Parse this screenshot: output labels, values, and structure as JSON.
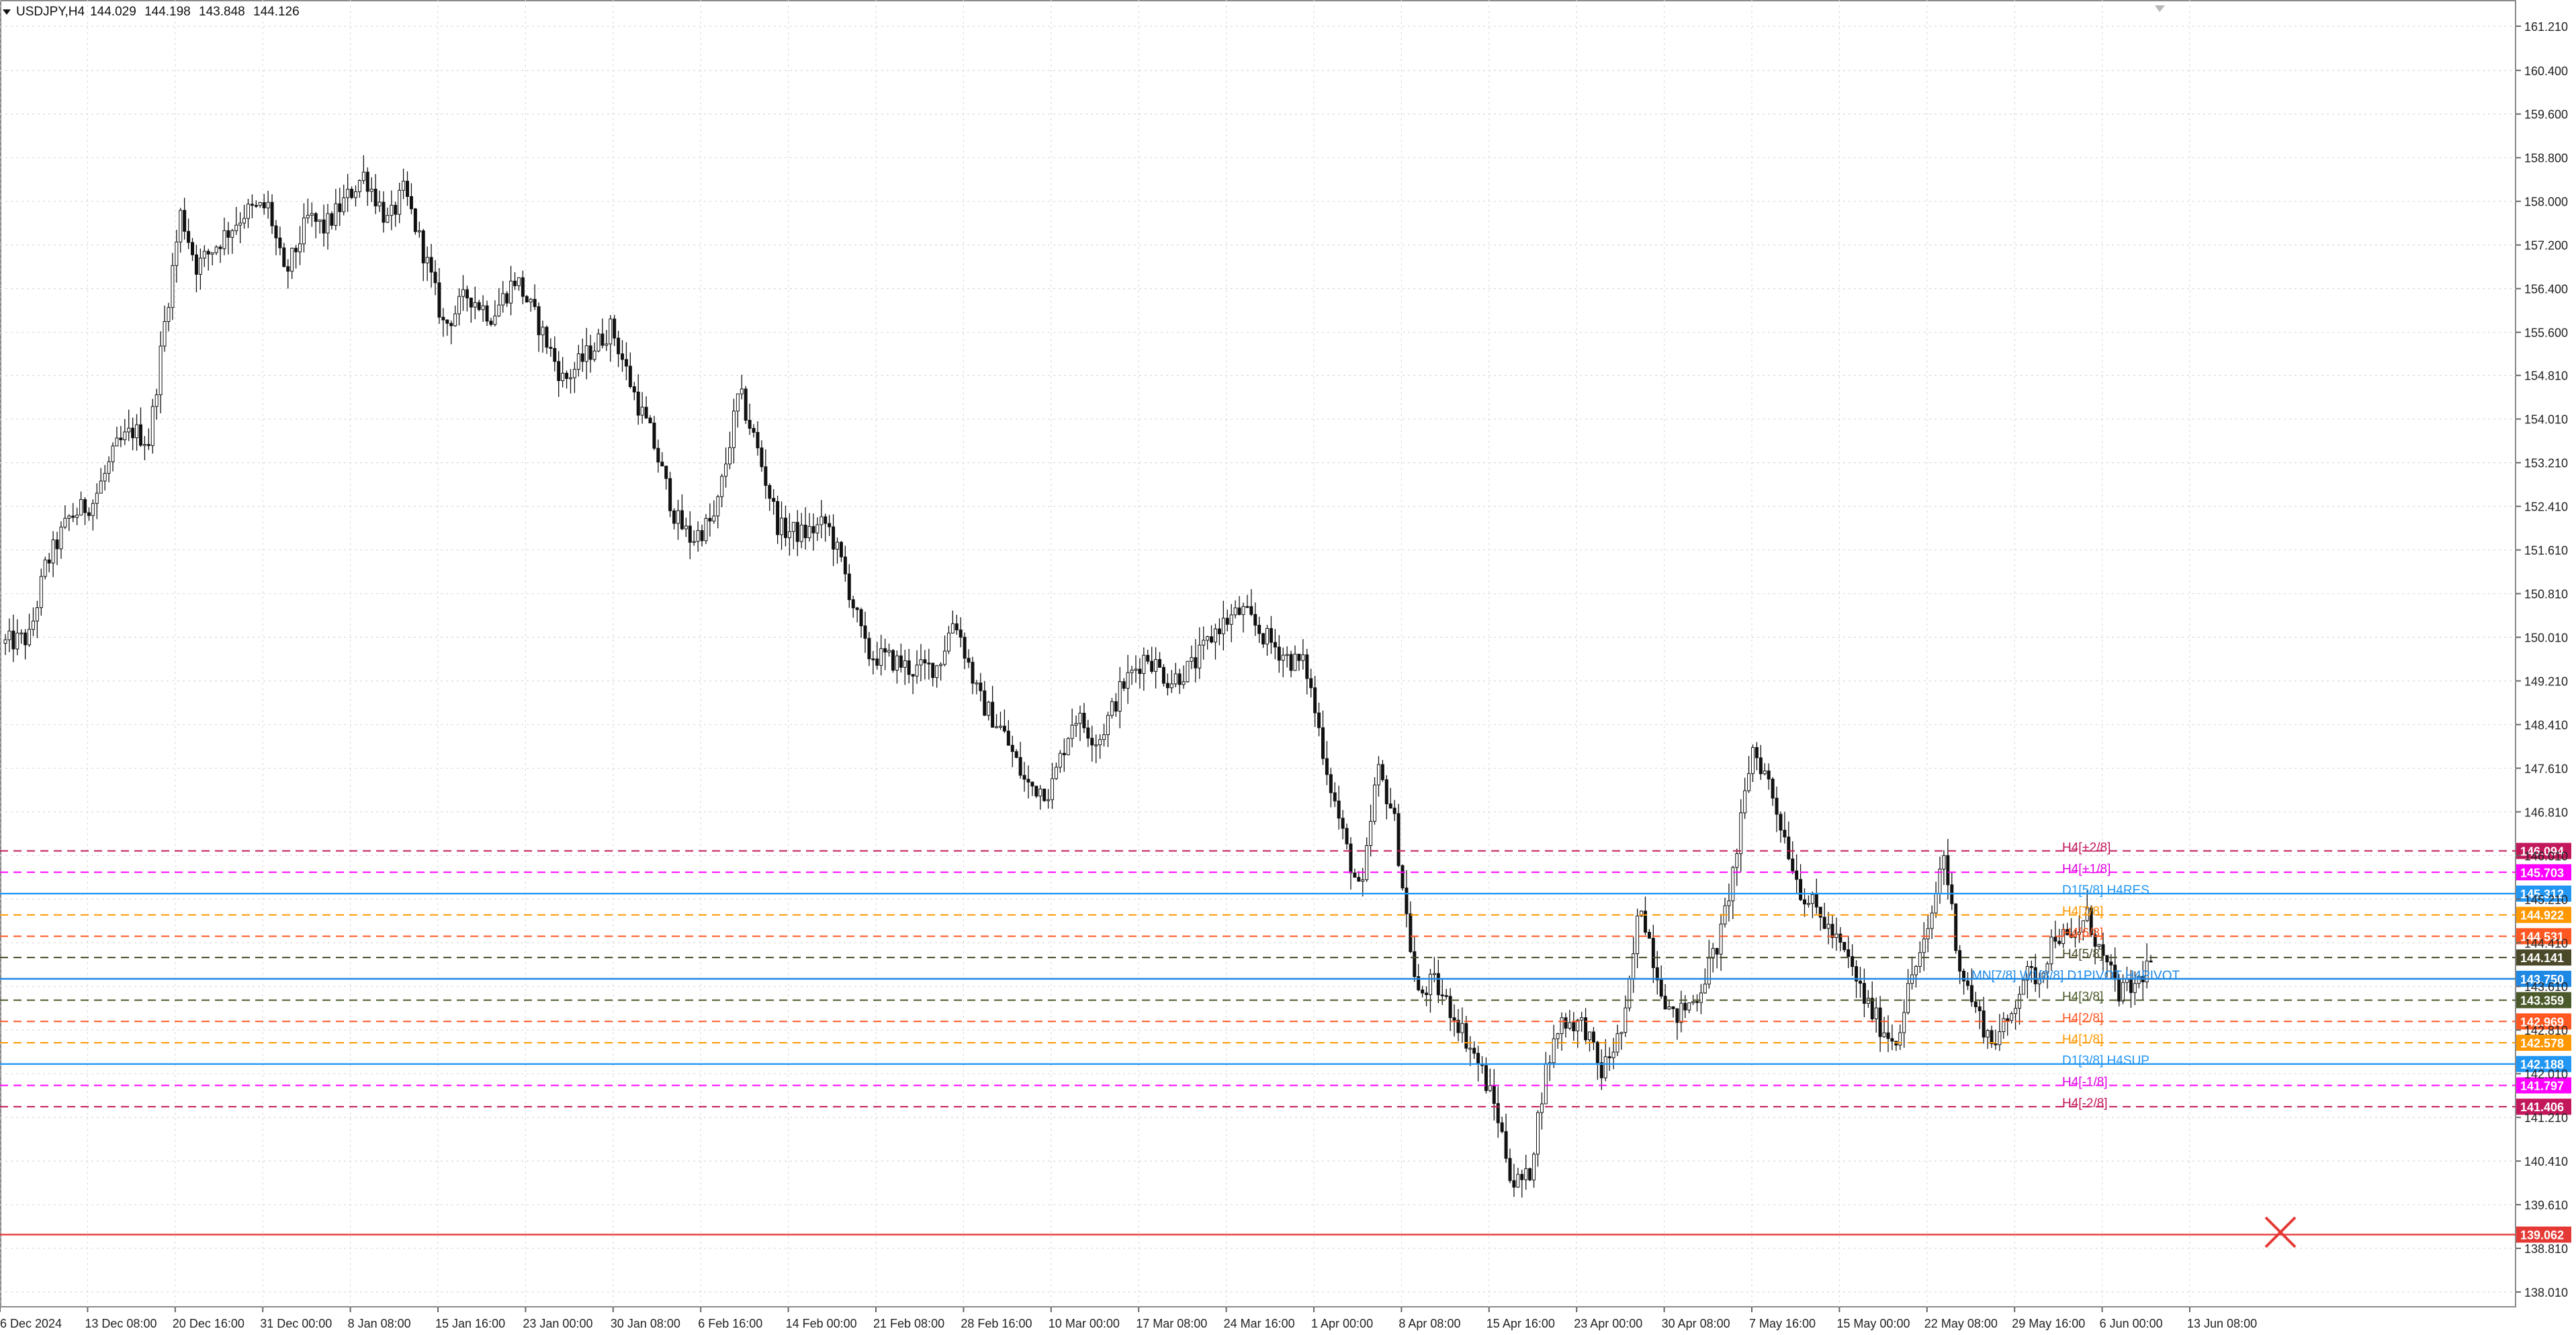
{
  "symbol": {
    "name": "USDJPY,H4",
    "open": "144.029",
    "high": "144.198",
    "low": "143.848",
    "close": "144.126",
    "menu_icon": "triangle-down-icon"
  },
  "price_axis": {
    "ticks": [
      "161.210",
      "160.400",
      "159.600",
      "158.800",
      "158.000",
      "157.200",
      "156.400",
      "155.600",
      "154.810",
      "154.010",
      "153.210",
      "152.410",
      "151.610",
      "150.810",
      "150.010",
      "149.210",
      "148.410",
      "147.610",
      "146.810",
      "146.010",
      "145.210",
      "144.410",
      "143.610",
      "142.810",
      "142.010",
      "141.210",
      "140.410",
      "139.610",
      "138.810",
      "138.010"
    ],
    "range": [
      137.6,
      161.7
    ]
  },
  "time_axis": {
    "labels": [
      "6 Dec 2024",
      "13 Dec 08:00",
      "20 Dec 16:00",
      "31 Dec 00:00",
      "8 Jan 08:00",
      "15 Jan 16:00",
      "23 Jan 00:00",
      "30 Jan 08:00",
      "6 Feb 16:00",
      "14 Feb 00:00",
      "21 Feb 08:00",
      "28 Feb 16:00",
      "10 Mar 00:00",
      "17 Mar 08:00",
      "24 Mar 16:00",
      "1 Apr 00:00",
      "8 Apr 08:00",
      "15 Apr 16:00",
      "23 Apr 00:00",
      "30 Apr 08:00",
      "7 May 16:00",
      "15 May 00:00",
      "22 May 08:00",
      "29 May 16:00",
      "6 Jun 00:00",
      "13 Jun 08:00"
    ]
  },
  "levels": [
    {
      "price": 146.094,
      "badge": "146.094",
      "color": "#c2185b",
      "dash": true,
      "label": "H4[+2/8]",
      "label_color": "#c2185b"
    },
    {
      "price": 145.703,
      "badge": "145.703",
      "color": "#ff00ff",
      "dash": true,
      "label": "H4[+1/8]",
      "label_color": "#e000e0"
    },
    {
      "price": 145.312,
      "badge": "145.312",
      "color": "#2196f3",
      "dash": false,
      "label": "D1[5/8] H4RES",
      "label_color": "#2196f3"
    },
    {
      "price": 144.922,
      "badge": "144.922",
      "color": "#ff9800",
      "dash": true,
      "label": "H4[7/8]",
      "label_color": "#ff9800"
    },
    {
      "price": 144.531,
      "badge": "144.531",
      "color": "#ff5722",
      "dash": true,
      "label": "H4[6/8]",
      "label_color": "#ff5722"
    },
    {
      "price": 144.141,
      "badge": "144.141",
      "color": "#4a4a2a",
      "dash": true,
      "label": "H4[5/8]",
      "label_color": "#4a4a2a"
    },
    {
      "price": 143.75,
      "badge": "143.750",
      "color": "#1e88e5",
      "dash": false,
      "label": "MN[7/8] W1[8/8] D1PIVOT H4PIVOT",
      "label_color": "#1e88e5"
    },
    {
      "price": 143.359,
      "badge": "143.359",
      "color": "#4a5a2a",
      "dash": true,
      "label": "H4[3/8]",
      "label_color": "#4a5a2a"
    },
    {
      "price": 142.969,
      "badge": "142.969",
      "color": "#ff5722",
      "dash": true,
      "label": "H4[2/8]",
      "label_color": "#ff5722"
    },
    {
      "price": 142.578,
      "badge": "142.578",
      "color": "#ff9800",
      "dash": true,
      "label": "H4[1/8]",
      "label_color": "#ff9800"
    },
    {
      "price": 142.188,
      "badge": "142.188",
      "color": "#2196f3",
      "dash": false,
      "label": "D1[3/8] H4SUP",
      "label_color": "#2196f3"
    },
    {
      "price": 141.797,
      "badge": "141.797",
      "color": "#ff00ff",
      "dash": true,
      "label": "H4[-1/8]",
      "label_color": "#e000e0"
    },
    {
      "price": 141.406,
      "badge": "141.406",
      "color": "#c2185b",
      "dash": true,
      "label": "H4[-2/8]",
      "label_color": "#c2185b"
    },
    {
      "price": 139.062,
      "badge": "139.062",
      "color": "#e53935",
      "dash": false,
      "label": "",
      "label_color": "#e53935"
    }
  ],
  "marker": {
    "icon": "red-x-icon",
    "price": 139.2,
    "color": "#e53935"
  },
  "top_marker_icon": "scroll-marker-icon",
  "chart_data": {
    "type": "candlestick",
    "title": "",
    "xlabel": "",
    "ylabel": "",
    "ylim": [
      137.6,
      161.7
    ],
    "grid": true,
    "approx_path": [
      [
        0,
        149.9
      ],
      [
        6,
        150.0
      ],
      [
        10,
        151.3
      ],
      [
        16,
        152.2
      ],
      [
        22,
        152.5
      ],
      [
        28,
        153.5
      ],
      [
        32,
        153.8
      ],
      [
        36,
        153.6
      ],
      [
        40,
        155.8
      ],
      [
        44,
        157.8
      ],
      [
        48,
        156.8
      ],
      [
        54,
        157.3
      ],
      [
        60,
        157.8
      ],
      [
        66,
        157.9
      ],
      [
        70,
        156.6
      ],
      [
        76,
        157.7
      ],
      [
        80,
        157.5
      ],
      [
        86,
        158.1
      ],
      [
        90,
        158.5
      ],
      [
        96,
        157.6
      ],
      [
        100,
        158.2
      ],
      [
        106,
        156.8
      ],
      [
        110,
        155.7
      ],
      [
        116,
        156.3
      ],
      [
        122,
        155.9
      ],
      [
        128,
        156.6
      ],
      [
        134,
        155.7
      ],
      [
        140,
        154.7
      ],
      [
        146,
        155.2
      ],
      [
        152,
        155.7
      ],
      [
        158,
        154.4
      ],
      [
        162,
        153.7
      ],
      [
        168,
        152.2
      ],
      [
        172,
        151.8
      ],
      [
        178,
        152.2
      ],
      [
        184,
        154.5
      ],
      [
        188,
        153.6
      ],
      [
        194,
        152.0
      ],
      [
        200,
        151.9
      ],
      [
        206,
        152.1
      ],
      [
        210,
        151.3
      ],
      [
        216,
        149.7
      ],
      [
        222,
        149.6
      ],
      [
        228,
        149.4
      ],
      [
        234,
        149.5
      ],
      [
        238,
        150.4
      ],
      [
        244,
        148.9
      ],
      [
        250,
        148.3
      ],
      [
        256,
        147.3
      ],
      [
        262,
        147.2
      ],
      [
        268,
        148.6
      ],
      [
        274,
        148.1
      ],
      [
        280,
        149.1
      ],
      [
        286,
        149.7
      ],
      [
        292,
        149.2
      ],
      [
        298,
        149.5
      ],
      [
        304,
        150.2
      ],
      [
        310,
        150.5
      ],
      [
        316,
        150.0
      ],
      [
        322,
        149.6
      ],
      [
        326,
        149.5
      ],
      [
        332,
        147.4
      ],
      [
        336,
        146.2
      ],
      [
        340,
        145.2
      ],
      [
        344,
        147.6
      ],
      [
        348,
        146.8
      ],
      [
        354,
        143.4
      ],
      [
        358,
        143.7
      ],
      [
        364,
        143.0
      ],
      [
        370,
        142.1
      ],
      [
        374,
        141.3
      ],
      [
        378,
        140.0
      ],
      [
        382,
        140.1
      ],
      [
        386,
        142.0
      ],
      [
        390,
        143.0
      ],
      [
        396,
        142.9
      ],
      [
        400,
        142.0
      ],
      [
        406,
        142.9
      ],
      [
        410,
        145.2
      ],
      [
        414,
        143.9
      ],
      [
        418,
        143.0
      ],
      [
        424,
        143.4
      ],
      [
        430,
        144.5
      ],
      [
        434,
        146.0
      ],
      [
        438,
        148.0
      ],
      [
        442,
        147.4
      ],
      [
        446,
        146.4
      ],
      [
        450,
        145.4
      ],
      [
        456,
        144.8
      ],
      [
        462,
        144.1
      ],
      [
        466,
        143.4
      ],
      [
        470,
        142.9
      ],
      [
        474,
        142.6
      ],
      [
        478,
        143.8
      ],
      [
        482,
        144.5
      ],
      [
        486,
        146.1
      ],
      [
        490,
        144.0
      ],
      [
        494,
        143.2
      ],
      [
        498,
        142.6
      ],
      [
        502,
        142.9
      ],
      [
        506,
        143.8
      ],
      [
        510,
        143.8
      ],
      [
        514,
        144.6
      ],
      [
        518,
        144.4
      ],
      [
        522,
        144.9
      ],
      [
        526,
        144.1
      ],
      [
        530,
        143.5
      ],
      [
        534,
        143.6
      ],
      [
        538,
        144.1
      ]
    ]
  }
}
